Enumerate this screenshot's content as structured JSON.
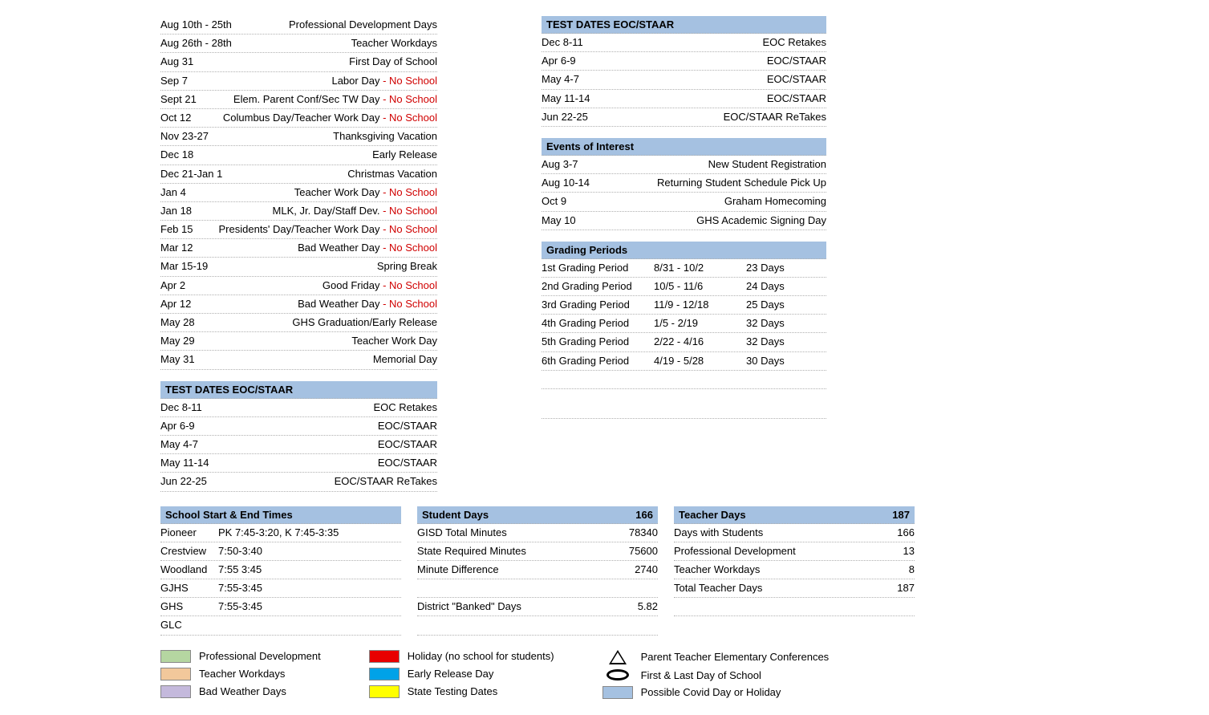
{
  "calendar": [
    {
      "date": "Aug   10th - 25th",
      "desc": "Professional Development Days",
      "noschool": false
    },
    {
      "date": "Aug   26th - 28th",
      "desc": "Teacher Workdays",
      "noschool": false
    },
    {
      "date": "Aug 31",
      "desc": "First Day of School",
      "noschool": false
    },
    {
      "date": "Sep 7",
      "desc": "Labor Day",
      "noschool": true
    },
    {
      "date": "Sept 21",
      "desc": "Elem. Parent Conf/Sec TW Day",
      "noschool": true
    },
    {
      "date": "Oct 12",
      "desc": "Columbus Day/Teacher Work Day",
      "noschool": true
    },
    {
      "date": "Nov 23-27",
      "desc": "Thanksgiving Vacation",
      "noschool": false
    },
    {
      "date": "Dec 18",
      "desc": "Early Release",
      "noschool": false
    },
    {
      "date": "Dec 21-Jan 1",
      "desc": "Christmas Vacation",
      "noschool": false
    },
    {
      "date": "Jan 4",
      "desc": "Teacher Work Day",
      "noschool": true
    },
    {
      "date": "Jan 18",
      "desc": "MLK, Jr. Day/Staff Dev.",
      "noschool": true
    },
    {
      "date": "Feb 15",
      "desc": "Presidents' Day/Teacher Work Day",
      "noschool": true
    },
    {
      "date": "Mar 12",
      "desc": "Bad Weather Day",
      "noschool": true
    },
    {
      "date": "Mar 15-19",
      "desc": "Spring Break",
      "noschool": false
    },
    {
      "date": "Apr 2",
      "desc": "Good Friday",
      "noschool": true
    },
    {
      "date": "Apr 12",
      "desc": "Bad Weather Day",
      "noschool": true
    },
    {
      "date": "May 28",
      "desc": "GHS Graduation/Early Release",
      "noschool": false
    },
    {
      "date": "May 29",
      "desc": "Teacher Work Day",
      "noschool": false
    },
    {
      "date": "May 31",
      "desc": "Memorial Day",
      "noschool": false
    }
  ],
  "test_header": "TEST DATES  EOC/STAAR",
  "tests": [
    {
      "date": "Dec 8-11",
      "desc": "EOC Retakes"
    },
    {
      "date": "Apr 6-9",
      "desc": "EOC/STAAR"
    },
    {
      "date": "May 4-7",
      "desc": "EOC/STAAR"
    },
    {
      "date": "May 11-14",
      "desc": "EOC/STAAR"
    },
    {
      "date": "Jun 22-25",
      "desc": "EOC/STAAR ReTakes"
    }
  ],
  "events_header": "Events of Interest",
  "events": [
    {
      "date": "Aug 3-7",
      "desc": "New Student Registration"
    },
    {
      "date": "Aug 10-14",
      "desc": "Returning Student Schedule Pick Up"
    },
    {
      "date": "Oct 9",
      "desc": "Graham Homecoming"
    },
    {
      "date": "May 10",
      "desc": "GHS Academic Signing Day"
    }
  ],
  "grading_header": "Grading Periods",
  "grading": [
    {
      "name": "1st  Grading Period",
      "range": "8/31 - 10/2",
      "days": "23 Days"
    },
    {
      "name": "2nd  Grading Period",
      "range": "10/5 - 11/6",
      "days": "24 Days"
    },
    {
      "name": "3rd  Grading Period",
      "range": "11/9 - 12/18",
      "days": "25 Days"
    },
    {
      "name": "4th  Grading Period",
      "range": "1/5 - 2/19",
      "days": "32 Days"
    },
    {
      "name": "5th  Grading Period",
      "range": "2/22 - 4/16",
      "days": "32 Days"
    },
    {
      "name": "6th  Grading Period",
      "range": "4/19 - 5/28",
      "days": "30 Days"
    }
  ],
  "times_header": "School Start & End Times",
  "times": [
    {
      "school": "Pioneer",
      "time": "PK 7:45-3:20, K 7:45-3:35"
    },
    {
      "school": "Crestview",
      "time": "7:50-3:40"
    },
    {
      "school": "Woodland",
      "time": "7:55  3:45"
    },
    {
      "school": "GJHS",
      "time": "7:55-3:45"
    },
    {
      "school": "GHS",
      "time": "7:55-3:45"
    },
    {
      "school": "GLC",
      "time": ""
    }
  ],
  "student_header": {
    "label": "Student Days",
    "val": "166"
  },
  "student_stats": [
    {
      "label": "GISD Total Minutes",
      "val": "78340"
    },
    {
      "label": "State Required Minutes",
      "val": "75600"
    },
    {
      "label": "Minute Difference",
      "val": "2740"
    }
  ],
  "banked": {
    "label": "District \"Banked\" Days",
    "val": "5.82"
  },
  "teacher_header": {
    "label": "Teacher Days",
    "val": "187"
  },
  "teacher_stats": [
    {
      "label": "Days with Students",
      "val": "166"
    },
    {
      "label": "Professional Development",
      "val": "13"
    },
    {
      "label": "Teacher Workdays",
      "val": "8"
    },
    {
      "label": "Total Teacher Days",
      "val": "187"
    }
  ],
  "legend": {
    "col1": [
      {
        "color": "#b5d6a1",
        "label": "Professional Development"
      },
      {
        "color": "#f2c89b",
        "label": "Teacher Workdays"
      },
      {
        "color": "#c4b9dc",
        "label": "Bad Weather Days"
      }
    ],
    "col2": [
      {
        "color": "#e80000",
        "label": "Holiday (no school for students)"
      },
      {
        "color": "#00a2e8",
        "label": "Early Release Day"
      },
      {
        "color": "#ffff00",
        "label": "State Testing Dates"
      }
    ],
    "col3": [
      {
        "symbol": "triangle",
        "label": "Parent Teacher Elementary Conferences"
      },
      {
        "symbol": "oval",
        "label": "First & Last Day of School"
      },
      {
        "color": "#a5c1e1",
        "label": "Possible Covid Day or Holiday"
      }
    ]
  },
  "noschool_suffix": " - No School"
}
